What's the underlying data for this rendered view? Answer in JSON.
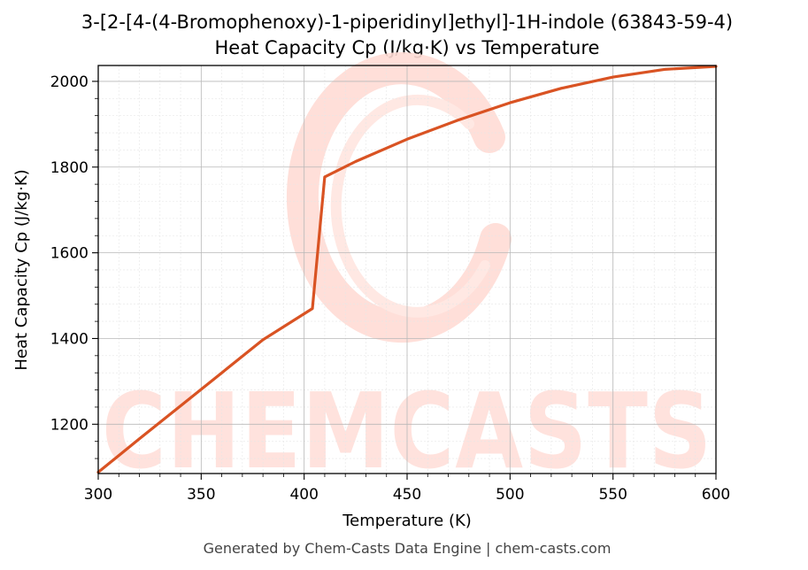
{
  "chart_data": {
    "type": "line",
    "title": "3-[2-[4-(4-Bromophenoxy)-1-piperidinyl]ethyl]-1H-indole (63843-59-4)",
    "subtitle": "Heat Capacity Cp (J/kg·K) vs Temperature",
    "xlabel": "Temperature (K)",
    "ylabel": "Heat Capacity Cp (J/kg·K)",
    "xlim": [
      300,
      600
    ],
    "ylim": [
      1085,
      2037
    ],
    "xticks": [
      300,
      350,
      400,
      450,
      500,
      550,
      600
    ],
    "yticks": [
      1200,
      1400,
      1600,
      1800,
      2000
    ],
    "grid": true,
    "line_color": "#d95323",
    "series": [
      {
        "x": [
          300,
          320,
          340,
          360,
          380,
          404,
          410,
          425,
          450,
          475,
          500,
          525,
          550,
          575,
          600
        ],
        "values": [
          1088,
          1166,
          1243,
          1320,
          1397,
          1470,
          1777,
          1813,
          1865,
          1910,
          1950,
          1984,
          2010,
          2028,
          2035
        ]
      }
    ]
  },
  "watermark": {
    "text": "CHEMCASTS",
    "color": "#ffd9d2"
  },
  "footer": {
    "text": "Generated by Chem-Casts Data Engine | chem-casts.com"
  }
}
